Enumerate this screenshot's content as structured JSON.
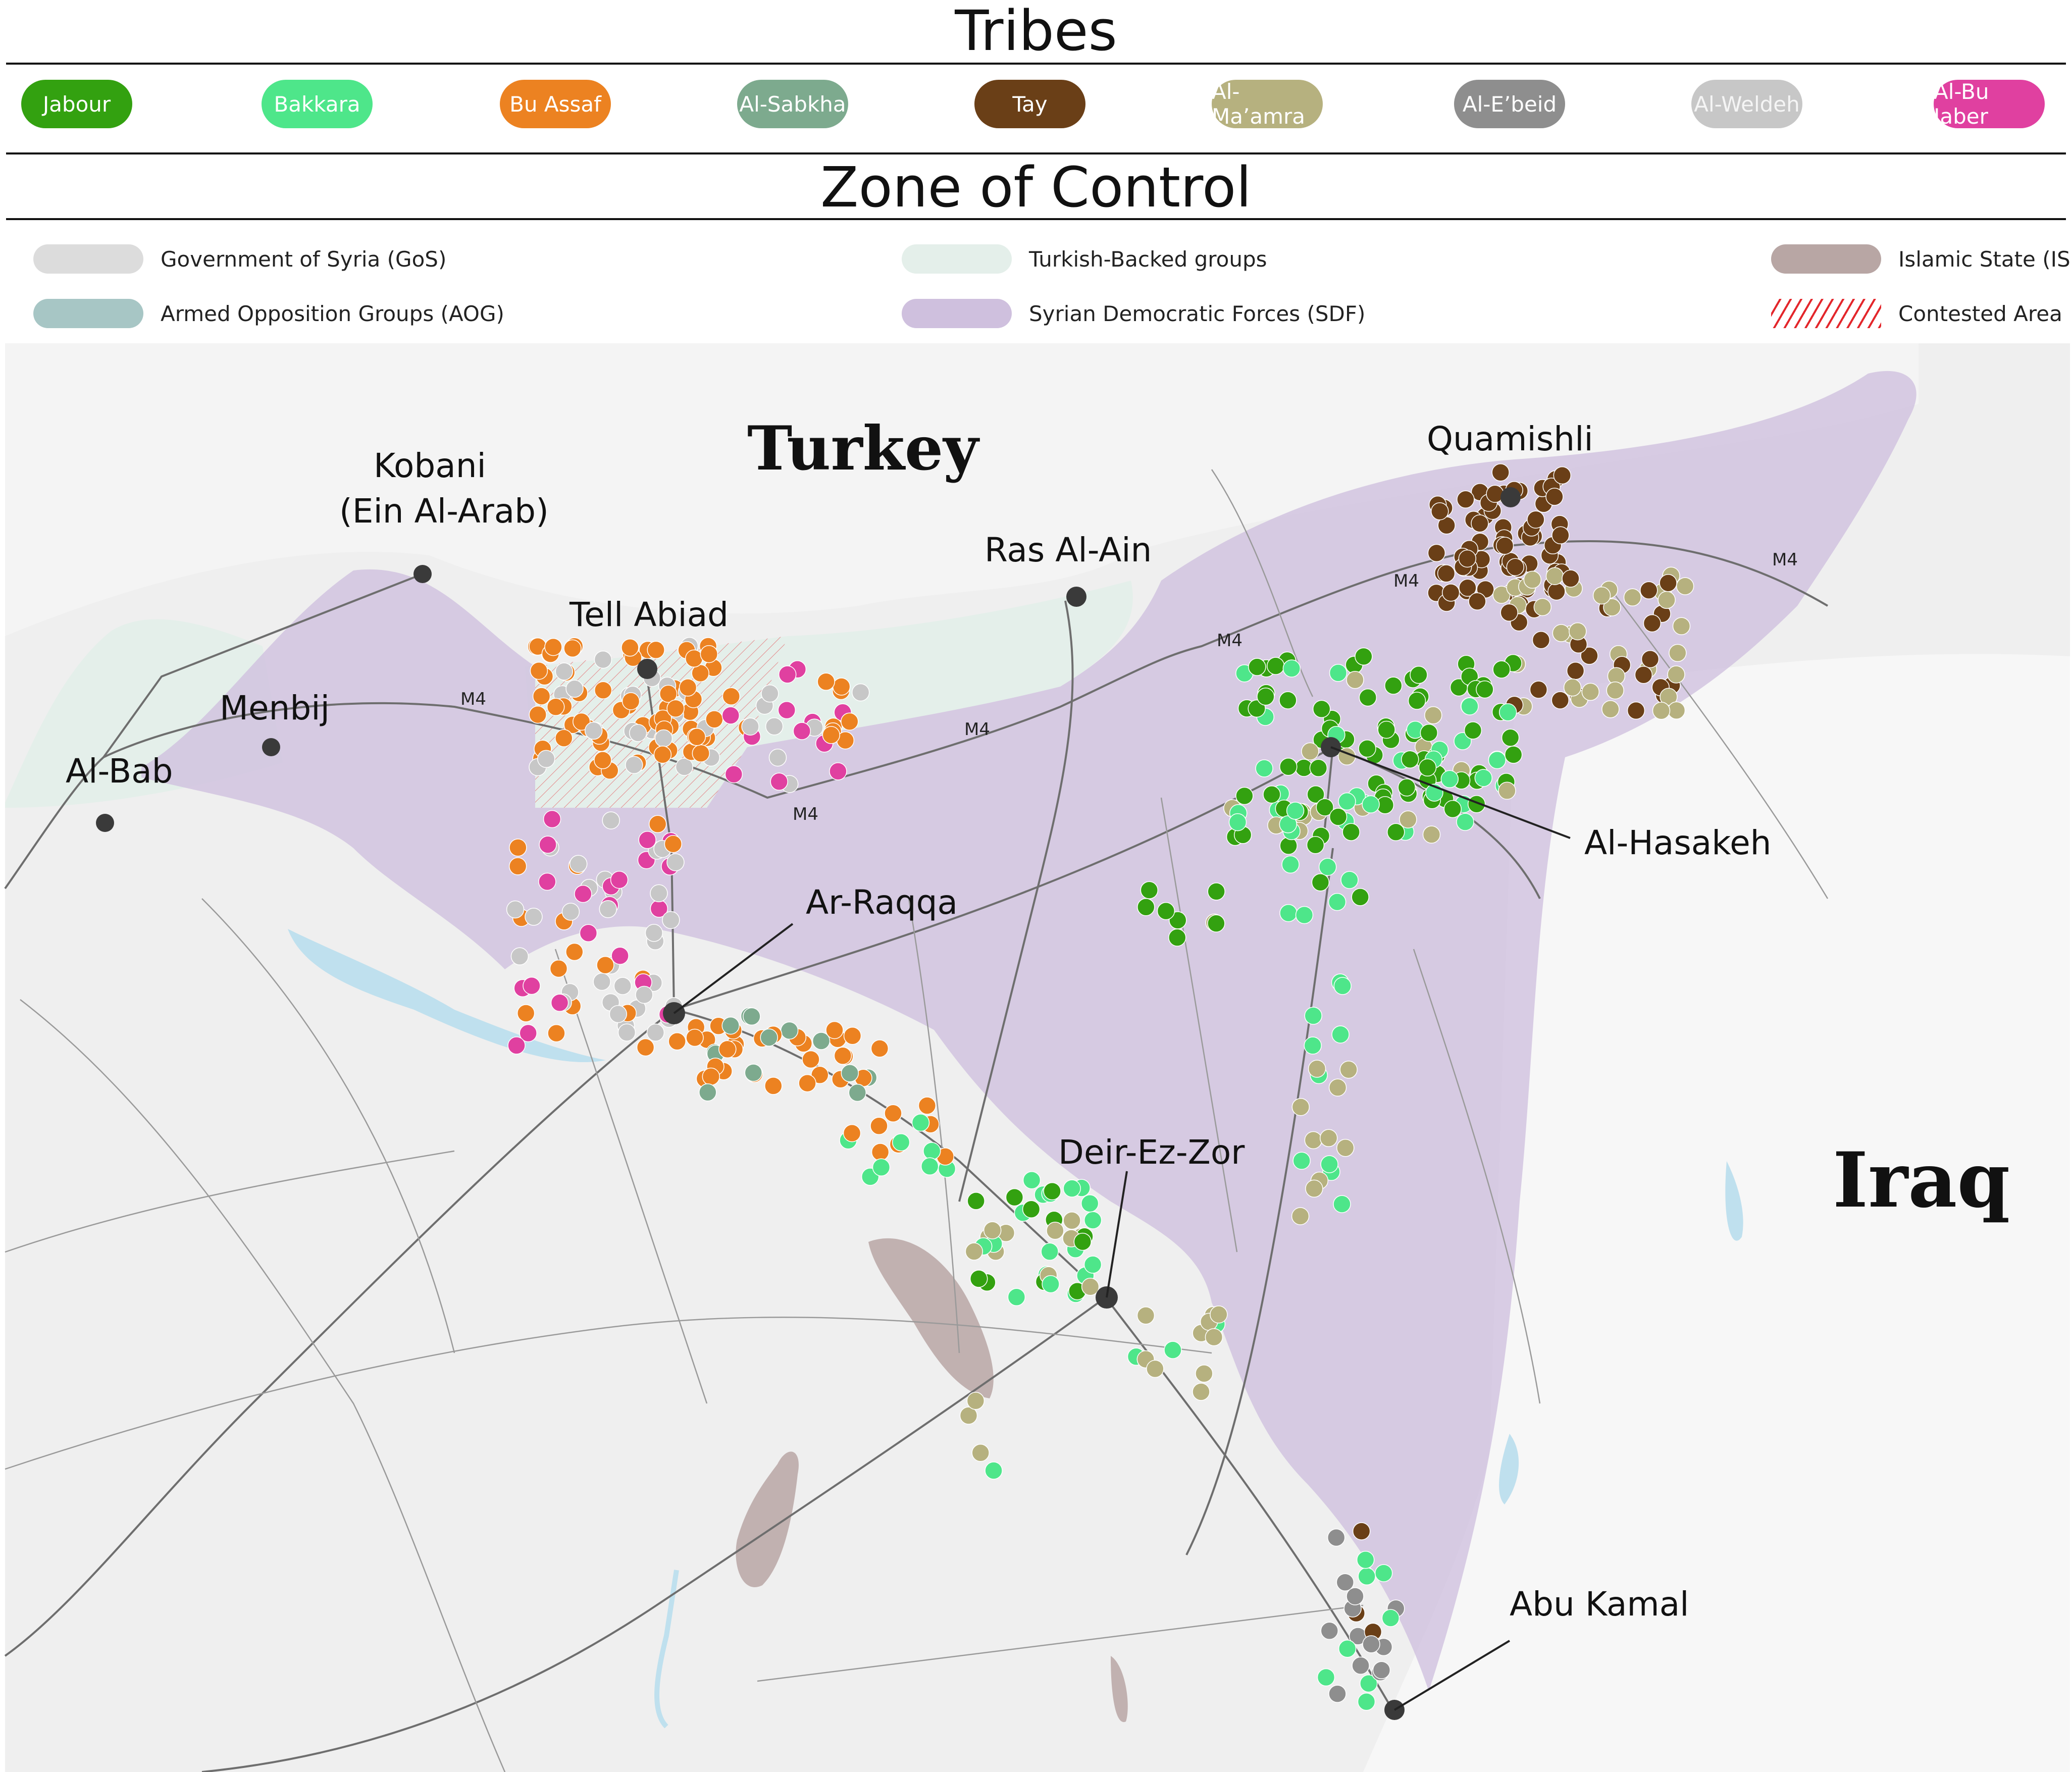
{
  "tribes": {
    "title": "Tribes",
    "items": [
      {
        "label": "Jabour",
        "color": "#33a110"
      },
      {
        "label": "Bakkara",
        "color": "#4ee68a"
      },
      {
        "label": "Bu Assaf",
        "color": "#ec8221"
      },
      {
        "label": "Al-Sabkha",
        "color": "#7daa8e"
      },
      {
        "label": "Tay",
        "color": "#6a3f17"
      },
      {
        "label": "Al-Ma’amra",
        "color": "#b6b17f"
      },
      {
        "label": "Al-E’beid",
        "color": "#8e8e8e"
      },
      {
        "label": "Al-Weldeh",
        "color": "#c7c7c7"
      },
      {
        "label": "Al-Bu Jaber",
        "color": "#e040a0"
      }
    ]
  },
  "zones": {
    "title": "Zone of Control",
    "items": [
      {
        "label": "Government of Syria (GoS)",
        "color": "#dcdcdc"
      },
      {
        "label": "Armed Opposition Groups (AOG)",
        "color": "#a7c6c5"
      },
      {
        "label": "Turkish-Backed groups",
        "color": "#e4efea"
      },
      {
        "label": "Syrian Democratic Forces (SDF)",
        "color": "#cfc0de"
      },
      {
        "label": "Islamic State (IS)",
        "color": "#b8a6a4"
      },
      {
        "label": "Contested Area",
        "color": "#e3262b"
      }
    ]
  },
  "map": {
    "countries": {
      "turkey": "Turkey",
      "iraq": "Iraq"
    },
    "road_label": "M4",
    "cities": {
      "kobani": "Kobani",
      "kobani_alt": "(Ein Al-Arab)",
      "menbij": "Menbij",
      "al_bab": "Al-Bab",
      "tell_abiad": "Tell Abiad",
      "ras_al_ain": "Ras Al-Ain",
      "quamishli": "Quamishli",
      "al_hasakeh": "Al-Hasakeh",
      "ar_raqqa": "Ar-Raqqa",
      "deir_ez_zor": "Deir-Ez-Zor",
      "abu_kamal": "Abu Kamal"
    }
  }
}
